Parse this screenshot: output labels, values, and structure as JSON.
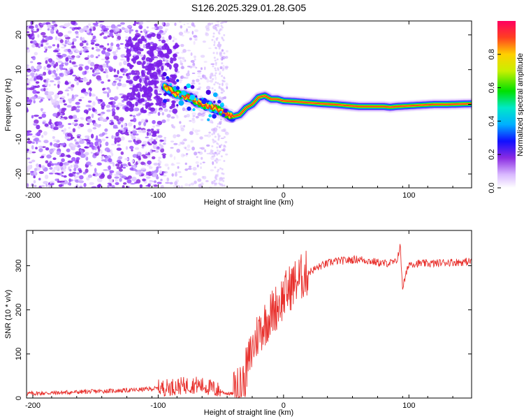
{
  "title": "S126.2025.329.01.28.G05",
  "chart_data": [
    {
      "type": "heatmap",
      "xlabel": "Height of straight line (km)",
      "ylabel": "Frequency (Hz)",
      "xlim": [
        -205,
        150
      ],
      "ylim": [
        -24,
        24
      ],
      "xticks": [
        -200,
        -100,
        0,
        100
      ],
      "yticks": [
        -20,
        -10,
        0,
        10,
        20
      ],
      "colorbar": {
        "label": "Normalized spectral amplitude",
        "range": [
          0,
          1
        ],
        "ticks": [
          "0.0",
          "0.2",
          "0.4",
          "0.6",
          "0.8"
        ],
        "tick_values": [
          0.0,
          0.2,
          0.4,
          0.6,
          0.8
        ]
      },
      "ridge": {
        "x": [
          -95,
          -85,
          -75,
          -65,
          -55,
          -45,
          -40,
          -35,
          -30,
          -25,
          -20,
          -15,
          -10,
          -5,
          0,
          10,
          20,
          30,
          40,
          50,
          60,
          70,
          80,
          85,
          90,
          100,
          110,
          120,
          130,
          140,
          150
        ],
        "freq": [
          5,
          3,
          2,
          0,
          -1,
          -3,
          -3.5,
          -3,
          -1,
          0,
          2,
          2.5,
          1.5,
          1.5,
          1,
          0.8,
          0.5,
          0.2,
          0,
          -0.3,
          -0.6,
          -0.6,
          -0.6,
          -0.8,
          -0.6,
          -0.4,
          -0.2,
          0,
          0,
          0.1,
          0.2
        ]
      }
    },
    {
      "type": "line",
      "xlabel": "Height of straight line (km)",
      "ylabel": "SNR (10 * v/v)",
      "xlim": [
        -205,
        150
      ],
      "ylim": [
        0,
        380
      ],
      "xticks": [
        -200,
        -100,
        0,
        100
      ],
      "yticks": [
        0,
        100,
        200,
        300
      ],
      "series": [
        {
          "name": "SNR",
          "color": "#e8302c",
          "x": [
            -205,
            -180,
            -150,
            -120,
            -100,
            -90,
            -80,
            -70,
            -60,
            -50,
            -45,
            -40,
            -35,
            -30,
            -25,
            -20,
            -15,
            -10,
            -5,
            0,
            5,
            10,
            20,
            30,
            40,
            50,
            60,
            70,
            80,
            90,
            93,
            95,
            100,
            110,
            120,
            130,
            140,
            150
          ],
          "y": [
            10,
            12,
            15,
            18,
            22,
            25,
            28,
            30,
            25,
            15,
            10,
            10,
            20,
            60,
            110,
            150,
            170,
            190,
            210,
            230,
            250,
            265,
            285,
            300,
            310,
            312,
            315,
            310,
            305,
            308,
            345,
            250,
            305,
            305,
            305,
            308,
            308,
            310
          ]
        }
      ]
    }
  ]
}
